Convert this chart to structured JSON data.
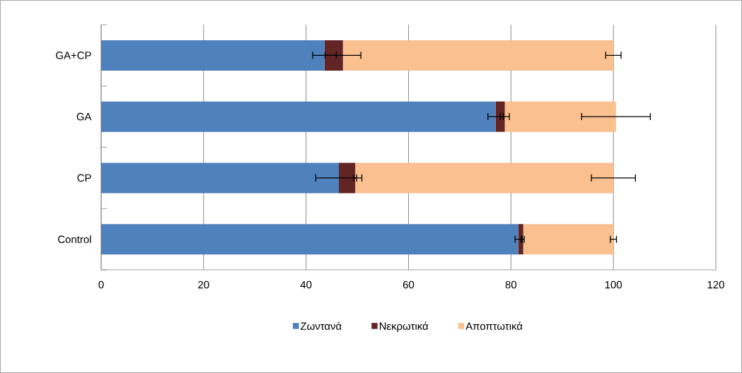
{
  "chart_data": {
    "type": "bar",
    "orientation": "horizontal",
    "stacked": true,
    "categories": [
      "GA+CP",
      "GA",
      "CP",
      "Control"
    ],
    "series": [
      {
        "name": "Ζωντανά",
        "color": "#4f81bd",
        "values": [
          43.6,
          77.0,
          46.4,
          81.4
        ],
        "errors": [
          2.3,
          1.5,
          4.5,
          0.6
        ]
      },
      {
        "name": "Νεκρωτικά",
        "color": "#632523",
        "values": [
          3.6,
          1.8,
          3.2,
          1.0
        ],
        "errors": [
          3.5,
          0.9,
          0.3,
          0.2
        ]
      },
      {
        "name": "Αποπτωτικά",
        "color": "#fac090",
        "values": [
          52.8,
          21.7,
          50.4,
          17.6
        ],
        "errors": [
          1.5,
          6.7,
          4.3,
          0.6
        ]
      }
    ],
    "xlim": [
      0,
      120
    ],
    "xticks": [
      0,
      20,
      40,
      60,
      80,
      100,
      120
    ],
    "grid": "x",
    "legend": "bottom"
  }
}
